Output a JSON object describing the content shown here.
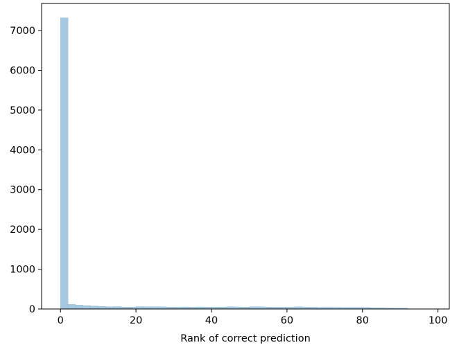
{
  "chart_data": {
    "type": "bar",
    "subtype": "histogram",
    "title": "",
    "xlabel": "Rank of correct prediction",
    "ylabel": "",
    "xlim": [
      -5,
      103
    ],
    "ylim": [
      0,
      7680
    ],
    "xticks": [
      0,
      20,
      40,
      60,
      80,
      100
    ],
    "yticks": [
      0,
      1000,
      2000,
      3000,
      4000,
      5000,
      6000,
      7000
    ],
    "bar_color": "#a6c8e0",
    "bar_edge_color": "#8fb6d4",
    "bin_width": 2,
    "bin_starts": [
      0,
      2,
      4,
      6,
      8,
      10,
      12,
      14,
      16,
      18,
      20,
      22,
      24,
      26,
      28,
      30,
      32,
      34,
      36,
      38,
      40,
      42,
      44,
      46,
      48,
      50,
      52,
      54,
      56,
      58,
      60,
      62,
      64,
      66,
      68,
      70,
      72,
      74,
      76,
      78,
      80,
      82,
      84,
      86,
      88,
      90
    ],
    "values": [
      7320,
      115,
      100,
      85,
      75,
      65,
      55,
      60,
      50,
      50,
      60,
      58,
      55,
      55,
      50,
      50,
      52,
      48,
      52,
      48,
      50,
      50,
      55,
      52,
      48,
      55,
      55,
      48,
      45,
      45,
      45,
      55,
      45,
      45,
      42,
      42,
      42,
      40,
      40,
      40,
      38,
      30,
      30,
      25,
      20,
      20
    ],
    "grid": false,
    "legend": null
  }
}
